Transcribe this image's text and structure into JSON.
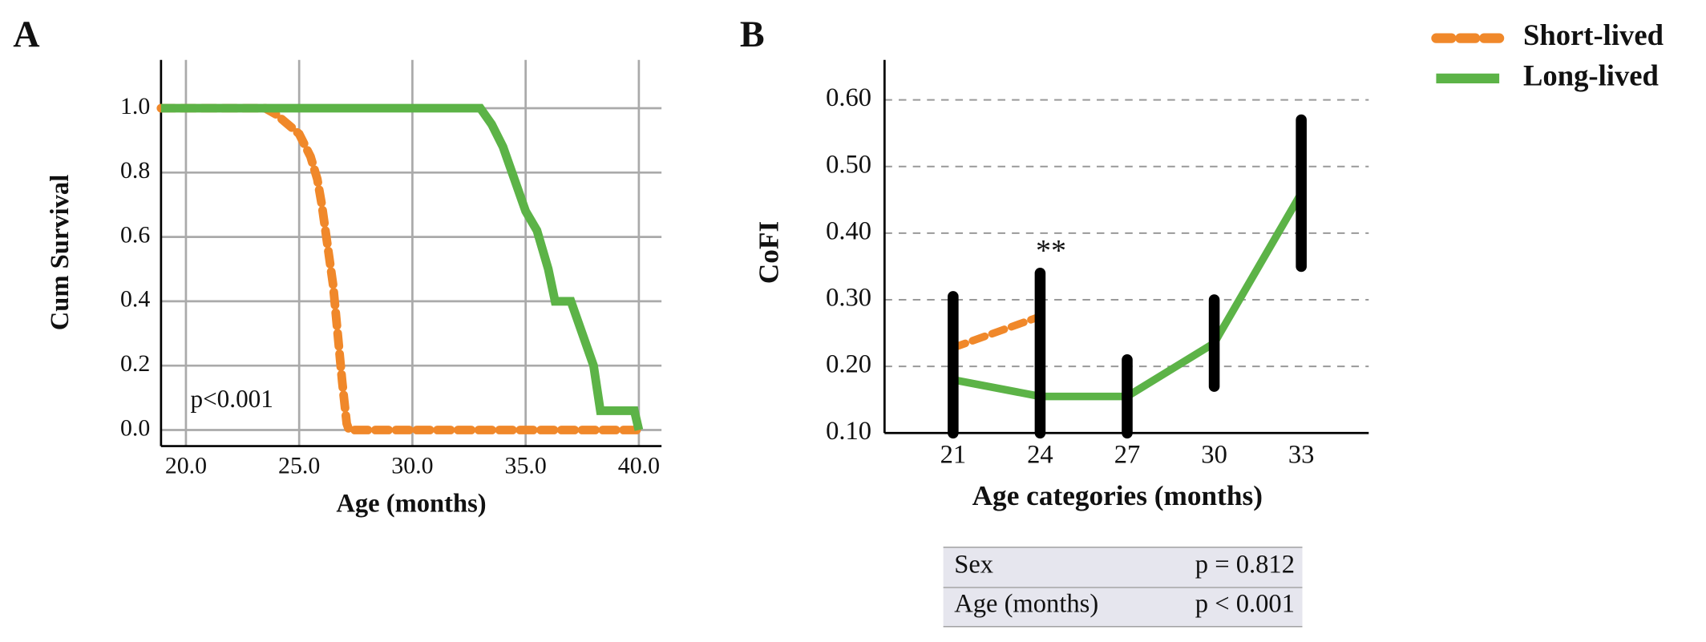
{
  "chart_data": [
    {
      "type": "line",
      "title": "A",
      "xlabel": "Age (months)",
      "ylabel": "Cum Survival",
      "annotation": "p<0.001",
      "xlim": [
        18.9,
        41
      ],
      "ylim": [
        -0.05,
        1.15
      ],
      "xticks": [
        {
          "value": 20,
          "label": "20.0"
        },
        {
          "value": 25,
          "label": "25.0"
        },
        {
          "value": 30,
          "label": "30.0"
        },
        {
          "value": 35,
          "label": "35.0"
        },
        {
          "value": 40,
          "label": "40.0"
        }
      ],
      "yticks": [
        {
          "value": 0,
          "label": "0.0"
        },
        0.2,
        0.4,
        0.6,
        0.8,
        {
          "value": 1,
          "label": "1.0"
        }
      ],
      "grid": true,
      "series": [
        {
          "name": "Short-lived",
          "color": "#f0882a",
          "dashed": true,
          "x": [
            18.9,
            23.5,
            24,
            24.5,
            25,
            25.5,
            25.8,
            26,
            26.2,
            26.5,
            26.7,
            26.9,
            27.1,
            27.2,
            40
          ],
          "values": [
            1,
            1,
            0.98,
            0.95,
            0.92,
            0.85,
            0.78,
            0.7,
            0.6,
            0.45,
            0.3,
            0.15,
            0.02,
            0,
            0
          ]
        },
        {
          "name": "Long-lived",
          "color": "#5cb347",
          "dashed": false,
          "x": [
            18.9,
            33,
            33.5,
            34,
            34.5,
            35,
            35.5,
            36,
            36.3,
            37,
            37.5,
            38,
            38.3,
            39.8,
            40
          ],
          "values": [
            1,
            1,
            0.95,
            0.88,
            0.78,
            0.68,
            0.62,
            0.5,
            0.4,
            0.4,
            0.3,
            0.2,
            0.06,
            0.06,
            0
          ]
        }
      ]
    },
    {
      "type": "line",
      "title": "B",
      "xlabel": "Age categories (months)",
      "ylabel": "CoFI",
      "annotation": "**",
      "annotation_index": 1,
      "categories": [
        "21",
        "24",
        "27",
        "30",
        "33"
      ],
      "ylim": [
        0.1,
        0.66
      ],
      "yticks": [
        {
          "value": 0.1,
          "label": "0.10"
        },
        {
          "value": 0.2,
          "label": "0.20"
        },
        {
          "value": 0.3,
          "label": "0.30"
        },
        {
          "value": 0.4,
          "label": "0.40"
        },
        {
          "value": 0.5,
          "label": "0.50"
        },
        {
          "value": 0.6,
          "label": "0.60"
        }
      ],
      "grid": true,
      "legend": "top-right",
      "series": [
        {
          "name": "Short-lived",
          "color": "#f0882a",
          "dashed": true,
          "values": [
            0.228,
            0.275,
            null,
            null,
            null
          ]
        },
        {
          "name": "Long-lived",
          "color": "#5cb347",
          "dashed": false,
          "values": [
            0.18,
            0.155,
            0.155,
            0.235,
            0.46
          ]
        }
      ],
      "ranges": {
        "color": "#000000",
        "low": [
          0.1,
          0.1,
          0.1,
          0.17,
          0.35
        ],
        "high": [
          0.305,
          0.34,
          0.21,
          0.3,
          0.57
        ]
      }
    }
  ],
  "table": {
    "rows": [
      [
        "Sex",
        "p = 0.812"
      ],
      [
        "Age (months)",
        "p < 0.001"
      ]
    ]
  }
}
